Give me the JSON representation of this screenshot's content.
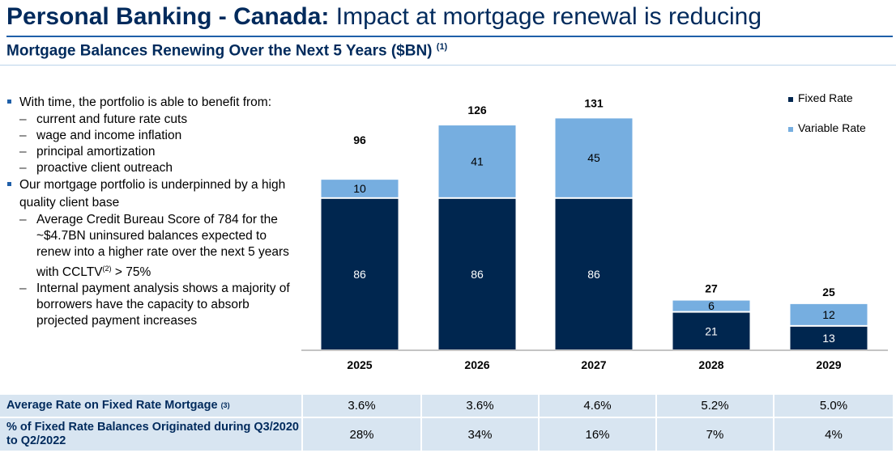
{
  "header": {
    "title_bold": "Personal Banking - Canada:",
    "title_rest": " Impact at mortgage renewal is reducing",
    "subtitle": "Mortgage Balances Renewing Over the Next 5 Years ($BN)",
    "subtitle_note": "(1)"
  },
  "bullets": [
    {
      "text": "With time, the portfolio is able to benefit from:",
      "subs": [
        "current and future rate cuts",
        "wage and income inflation",
        "principal amortization",
        "proactive client outreach"
      ]
    },
    {
      "text": "Our mortgage portfolio is underpinned by a high quality client base",
      "subs": []
    }
  ],
  "bullet2_subs": {
    "s1_pre": "Average Credit Bureau Score of 784 for the ~$4.7BN uninsured balances expected to renew into a higher rate over the next 5 years with CCLTV",
    "s1_sup": "(2)",
    "s1_post": " > 75%",
    "s2": "Internal payment analysis shows a majority of borrowers have the capacity to absorb projected payment increases"
  },
  "colors": {
    "fixed": "#00264f",
    "variable": "#76aee0",
    "title": "#002a5c",
    "table_bg": "#d8e5f1"
  },
  "chart_data": {
    "type": "bar",
    "stacked": true,
    "categories": [
      "2025",
      "2026",
      "2027",
      "2028",
      "2029"
    ],
    "series": [
      {
        "name": "Fixed Rate",
        "values": [
          86,
          86,
          86,
          21,
          13
        ]
      },
      {
        "name": "Variable Rate",
        "values": [
          10,
          41,
          45,
          6,
          12
        ]
      }
    ],
    "totals": [
      "96",
      "126",
      "131",
      "27",
      "25"
    ],
    "legend_position": "top-right",
    "grid": false
  },
  "table": {
    "rows": [
      {
        "label": "Average Rate on Fixed Rate Mortgage",
        "note": "(3)",
        "values": [
          "3.6%",
          "3.6%",
          "4.6%",
          "5.2%",
          "5.0%"
        ]
      },
      {
        "label": "% of Fixed Rate Balances Originated during Q3/2020 to Q2/2022",
        "note": "",
        "values": [
          "28%",
          "34%",
          "16%",
          "7%",
          "4%"
        ]
      }
    ]
  }
}
